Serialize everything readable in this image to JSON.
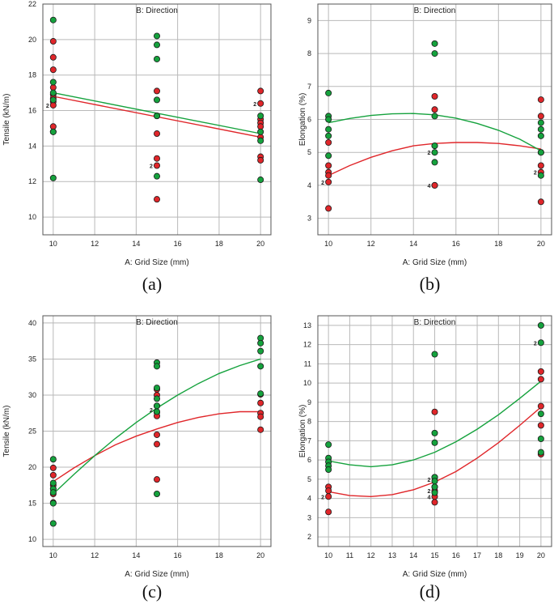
{
  "chart_data": [
    {
      "id": "a",
      "type": "scatter",
      "caption": "(a)",
      "title": "B: Direction",
      "xlabel": "A: Grid Size (mm)",
      "ylabel": "Tensile (kN/m)",
      "xlim": [
        9.5,
        20.5
      ],
      "ylim": [
        9,
        22
      ],
      "xticks": [
        10,
        12,
        14,
        16,
        18,
        20
      ],
      "yticks": [
        10,
        12,
        14,
        16,
        18,
        20,
        22
      ],
      "grid": true,
      "colors": {
        "red": "#e0262a",
        "green": "#15a23d"
      },
      "series": [
        {
          "color": "red",
          "points": [
            [
              10,
              19.9
            ],
            [
              10,
              19.0
            ],
            [
              10,
              18.3
            ],
            [
              10,
              17.3
            ],
            [
              10,
              16.9
            ],
            [
              10,
              16.7
            ],
            [
              10,
              16.5
            ],
            [
              10,
              16.3
            ],
            [
              10,
              15.1
            ],
            [
              10,
              14.8
            ],
            [
              15,
              17.1
            ],
            [
              15,
              15.7
            ],
            [
              15,
              14.7
            ],
            [
              15,
              13.3
            ],
            [
              15,
              12.9
            ],
            [
              15,
              11.0
            ],
            [
              20,
              17.1
            ],
            [
              20,
              16.4
            ],
            [
              20,
              15.5
            ],
            [
              20,
              15.3
            ],
            [
              20,
              15.1
            ],
            [
              20,
              14.5
            ],
            [
              20,
              13.4
            ],
            [
              20,
              13.2
            ]
          ],
          "fit": [
            [
              10,
              16.8
            ],
            [
              20,
              14.5
            ]
          ]
        },
        {
          "color": "green",
          "points": [
            [
              10,
              21.1
            ],
            [
              10,
              17.6
            ],
            [
              10,
              17.0
            ],
            [
              10,
              16.6
            ],
            [
              10,
              14.8
            ],
            [
              10,
              12.2
            ],
            [
              15,
              20.2
            ],
            [
              15,
              19.7
            ],
            [
              15,
              18.9
            ],
            [
              15,
              16.6
            ],
            [
              15,
              15.7
            ],
            [
              15,
              12.3
            ],
            [
              20,
              15.7
            ],
            [
              20,
              14.8
            ],
            [
              20,
              14.3
            ],
            [
              20,
              12.1
            ]
          ],
          "fit": [
            [
              10,
              17.0
            ],
            [
              20,
              14.7
            ]
          ]
        }
      ],
      "markers": [
        {
          "x": 10,
          "y": 16.3,
          "text": "2"
        },
        {
          "x": 15,
          "y": 12.9,
          "text": "2"
        },
        {
          "x": 20,
          "y": 16.4,
          "text": "2"
        }
      ]
    },
    {
      "id": "b",
      "type": "scatter",
      "caption": "(b)",
      "title": "B: Direction",
      "xlabel": "A: Grid Size (mm)",
      "ylabel": "Elongation (%)",
      "xlim": [
        9.5,
        20.5
      ],
      "ylim": [
        2.5,
        9.5
      ],
      "xticks": [
        10,
        12,
        14,
        16,
        18,
        20
      ],
      "yticks": [
        3,
        4,
        5,
        6,
        7,
        8,
        9
      ],
      "grid": true,
      "colors": {
        "red": "#e0262a",
        "green": "#15a23d"
      },
      "series": [
        {
          "color": "red",
          "points": [
            [
              10,
              5.3
            ],
            [
              10,
              4.6
            ],
            [
              10,
              4.4
            ],
            [
              10,
              4.3
            ],
            [
              10,
              4.1
            ],
            [
              10,
              3.3
            ],
            [
              15,
              6.7
            ],
            [
              15,
              6.3
            ],
            [
              15,
              5.2
            ],
            [
              15,
              4.0
            ],
            [
              15,
              4.0
            ],
            [
              20,
              6.6
            ],
            [
              20,
              6.1
            ],
            [
              20,
              5.0
            ],
            [
              20,
              4.6
            ],
            [
              20,
              4.4
            ],
            [
              20,
              3.5
            ]
          ],
          "fit": [
            [
              10,
              4.3
            ],
            [
              11,
              4.6
            ],
            [
              12,
              4.85
            ],
            [
              13,
              5.05
            ],
            [
              14,
              5.2
            ],
            [
              15,
              5.27
            ],
            [
              16,
              5.3
            ],
            [
              17,
              5.3
            ],
            [
              18,
              5.27
            ],
            [
              19,
              5.2
            ],
            [
              20,
              5.1
            ]
          ]
        },
        {
          "color": "green",
          "points": [
            [
              10,
              6.8
            ],
            [
              10,
              6.1
            ],
            [
              10,
              6.0
            ],
            [
              10,
              5.7
            ],
            [
              10,
              5.5
            ],
            [
              10,
              4.9
            ],
            [
              15,
              8.3
            ],
            [
              15,
              8.0
            ],
            [
              15,
              6.1
            ],
            [
              15,
              5.2
            ],
            [
              15,
              5.0
            ],
            [
              15,
              4.7
            ],
            [
              20,
              5.9
            ],
            [
              20,
              5.7
            ],
            [
              20,
              5.5
            ],
            [
              20,
              5.0
            ],
            [
              20,
              4.3
            ]
          ],
          "fit": [
            [
              10,
              5.9
            ],
            [
              11,
              6.03
            ],
            [
              12,
              6.12
            ],
            [
              13,
              6.17
            ],
            [
              14,
              6.18
            ],
            [
              15,
              6.14
            ],
            [
              16,
              6.04
            ],
            [
              17,
              5.88
            ],
            [
              18,
              5.67
            ],
            [
              19,
              5.4
            ],
            [
              20,
              5.05
            ]
          ]
        }
      ],
      "markers": [
        {
          "x": 10,
          "y": 4.1,
          "text": "2"
        },
        {
          "x": 15,
          "y": 5.0,
          "text": "2"
        },
        {
          "x": 15,
          "y": 4.0,
          "text": "4"
        },
        {
          "x": 20,
          "y": 4.4,
          "text": "2"
        }
      ]
    },
    {
      "id": "c",
      "type": "scatter",
      "caption": "(c)",
      "title": "B: Direction",
      "xlabel": "A: Grid Size (mm)",
      "ylabel": "Tensile (kN/m)",
      "xlim": [
        9.5,
        20.5
      ],
      "ylim": [
        9,
        41
      ],
      "xticks": [
        10,
        12,
        14,
        16,
        18,
        20
      ],
      "yticks": [
        10,
        15,
        20,
        25,
        30,
        35,
        40
      ],
      "grid": true,
      "colors": {
        "red": "#e0262a",
        "green": "#15a23d"
      },
      "series": [
        {
          "color": "red",
          "points": [
            [
              10,
              19.9
            ],
            [
              10,
              18.9
            ],
            [
              10,
              17.5
            ],
            [
              10,
              17.0
            ],
            [
              10,
              16.3
            ],
            [
              10,
              15.1
            ],
            [
              15,
              30.8
            ],
            [
              15,
              30.0
            ],
            [
              15,
              28.5
            ],
            [
              15,
              27.6
            ],
            [
              15,
              27.1
            ],
            [
              15,
              24.5
            ],
            [
              15,
              23.2
            ],
            [
              15,
              18.3
            ],
            [
              20,
              30.1
            ],
            [
              20,
              28.9
            ],
            [
              20,
              27.5
            ],
            [
              20,
              27.0
            ],
            [
              20,
              25.2
            ]
          ],
          "fit": [
            [
              10,
              18.0
            ],
            [
              11,
              19.9
            ],
            [
              12,
              21.6
            ],
            [
              13,
              23.1
            ],
            [
              14,
              24.3
            ],
            [
              15,
              25.3
            ],
            [
              16,
              26.2
            ],
            [
              17,
              26.9
            ],
            [
              18,
              27.4
            ],
            [
              19,
              27.7
            ],
            [
              20,
              27.7
            ]
          ]
        },
        {
          "color": "green",
          "points": [
            [
              10,
              21.1
            ],
            [
              10,
              17.8
            ],
            [
              10,
              17.0
            ],
            [
              10,
              16.5
            ],
            [
              10,
              15.0
            ],
            [
              10,
              12.2
            ],
            [
              15,
              34.5
            ],
            [
              15,
              34.0
            ],
            [
              15,
              31.0
            ],
            [
              15,
              29.5
            ],
            [
              15,
              28.5
            ],
            [
              15,
              27.7
            ],
            [
              15,
              16.3
            ],
            [
              20,
              37.9
            ],
            [
              20,
              37.2
            ],
            [
              20,
              36.1
            ],
            [
              20,
              34.0
            ],
            [
              20,
              30.2
            ]
          ],
          "fit": [
            [
              10,
              16.3
            ],
            [
              11,
              19.0
            ],
            [
              12,
              21.6
            ],
            [
              13,
              24.0
            ],
            [
              14,
              26.2
            ],
            [
              15,
              28.2
            ],
            [
              16,
              30.0
            ],
            [
              17,
              31.6
            ],
            [
              18,
              33.0
            ],
            [
              19,
              34.1
            ],
            [
              20,
              35.0
            ]
          ]
        }
      ],
      "markers": [
        {
          "x": 15,
          "y": 28.0,
          "text": "2"
        }
      ]
    },
    {
      "id": "d",
      "type": "scatter",
      "caption": "(d)",
      "title": "B: Direction",
      "xlabel": "A: Grid Size (mm)",
      "ylabel": "Elongation (%)",
      "xlim": [
        9.5,
        20.5
      ],
      "ylim": [
        1.5,
        13.5
      ],
      "xticks": [
        10,
        11,
        12,
        13,
        14,
        15,
        16,
        17,
        18,
        19,
        20
      ],
      "yticks": [
        2,
        3,
        4,
        5,
        6,
        7,
        8,
        9,
        10,
        11,
        12,
        13
      ],
      "grid": true,
      "colors": {
        "red": "#e0262a",
        "green": "#15a23d"
      },
      "series": [
        {
          "color": "red",
          "points": [
            [
              10,
              4.6
            ],
            [
              10,
              4.4
            ],
            [
              10,
              4.1
            ],
            [
              10,
              3.3
            ],
            [
              15,
              8.5
            ],
            [
              15,
              5.1
            ],
            [
              15,
              4.6
            ],
            [
              15,
              4.4
            ],
            [
              15,
              4.1
            ],
            [
              15,
              3.8
            ],
            [
              20,
              10.6
            ],
            [
              20,
              10.2
            ],
            [
              20,
              8.8
            ],
            [
              20,
              7.8
            ],
            [
              20,
              6.3
            ]
          ],
          "fit": [
            [
              10,
              4.35
            ],
            [
              11,
              4.15
            ],
            [
              12,
              4.1
            ],
            [
              13,
              4.2
            ],
            [
              14,
              4.45
            ],
            [
              15,
              4.85
            ],
            [
              16,
              5.4
            ],
            [
              17,
              6.1
            ],
            [
              18,
              6.9
            ],
            [
              19,
              7.8
            ],
            [
              20,
              8.75
            ]
          ]
        },
        {
          "color": "green",
          "points": [
            [
              10,
              6.8
            ],
            [
              10,
              6.1
            ],
            [
              10,
              5.9
            ],
            [
              10,
              5.7
            ],
            [
              10,
              5.5
            ],
            [
              15,
              11.5
            ],
            [
              15,
              7.4
            ],
            [
              15,
              6.9
            ],
            [
              15,
              5.1
            ],
            [
              15,
              4.9
            ],
            [
              15,
              4.6
            ],
            [
              15,
              4.3
            ],
            [
              20,
              13.0
            ],
            [
              20,
              12.1
            ],
            [
              20,
              8.4
            ],
            [
              20,
              7.1
            ],
            [
              20,
              6.4
            ]
          ],
          "fit": [
            [
              10,
              5.95
            ],
            [
              11,
              5.75
            ],
            [
              12,
              5.65
            ],
            [
              13,
              5.75
            ],
            [
              14,
              6.0
            ],
            [
              15,
              6.4
            ],
            [
              16,
              6.95
            ],
            [
              17,
              7.6
            ],
            [
              18,
              8.35
            ],
            [
              19,
              9.2
            ],
            [
              20,
              10.1
            ]
          ]
        }
      ],
      "markers": [
        {
          "x": 10,
          "y": 4.1,
          "text": "2"
        },
        {
          "x": 15,
          "y": 5.0,
          "text": "2"
        },
        {
          "x": 15,
          "y": 4.4,
          "text": "2"
        },
        {
          "x": 15,
          "y": 4.1,
          "text": "4"
        },
        {
          "x": 20,
          "y": 12.1,
          "text": "2"
        }
      ]
    }
  ]
}
